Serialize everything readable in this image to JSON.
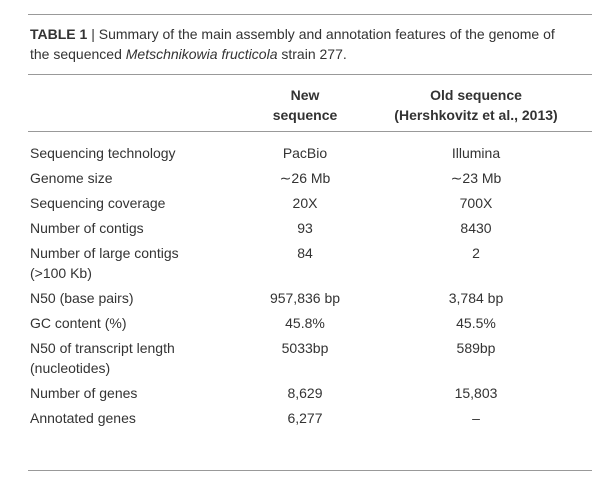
{
  "caption": {
    "label": "TABLE 1",
    "text": "| Summary of the main assembly and annotation features of the genome of the sequenced",
    "species": "Metschnikowia fructicola",
    "tail": "strain 277."
  },
  "header": {
    "new": "New sequence",
    "old": "Old sequence",
    "old_citation": "(Hershkovitz et al., 2013)"
  },
  "table": {
    "rows": [
      [
        "Sequencing technology",
        "PacBio",
        "Illumina"
      ],
      [
        "Genome size",
        "∼26 Mb",
        "∼23 Mb"
      ],
      [
        "Sequencing coverage",
        "20X",
        "700X"
      ],
      [
        "Number of contigs",
        "93",
        "8430"
      ],
      [
        "Number of large contigs (>100 Kb)",
        "84",
        "2"
      ],
      [
        "N50 (base pairs)",
        "957,836 bp",
        "3,784 bp"
      ],
      [
        "GC content (%)",
        "45.8%",
        "45.5%"
      ],
      [
        "N50 of transcript length (nucleotides)",
        "5033bp",
        "589bp"
      ],
      [
        "Number of genes",
        "8,629",
        "15,803"
      ],
      [
        "Annotated genes",
        "6,277",
        "–"
      ]
    ]
  }
}
